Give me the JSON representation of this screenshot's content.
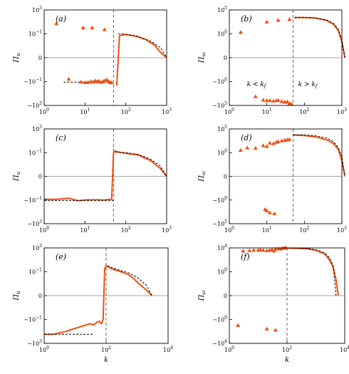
{
  "chart_data": [
    {
      "type": "line",
      "panel_label": "(a)",
      "ylabel": "Π_u",
      "xlabel": "",
      "xscale": "log",
      "xlim": [
        1,
        1000
      ],
      "yscale": "symlog",
      "xticks": [
        "10^0",
        "10^1",
        "10^2",
        "10^3"
      ],
      "yticks": [
        "−10^3",
        "−10^−1",
        "0",
        "10^−1",
        "10^3"
      ],
      "kf": 50,
      "series": [
        {
          "style": "solid-orange",
          "x": [
            60,
            70,
            80,
            100,
            150,
            200,
            300,
            500,
            700,
            1000
          ],
          "y": [
            -0.5,
            0.06,
            0.07,
            0.08,
            0.06,
            0.04,
            0.02,
            0.004,
            0.0005,
            0
          ]
        },
        {
          "style": "dashed-black",
          "x": [
            3,
            45
          ],
          "y": [
            -0.12,
            -0.12
          ]
        },
        {
          "style": "dashed-black",
          "x": [
            65,
            100,
            200,
            400,
            700,
            1000
          ],
          "y": [
            0.1,
            0.09,
            0.05,
            0.012,
            0.002,
            0
          ]
        },
        {
          "style": "triangles",
          "x": [
            2,
            4,
            8,
            10,
            12,
            14,
            16,
            18,
            20,
            22,
            25,
            28,
            30,
            34,
            38,
            42,
            45,
            9,
            15,
            30
          ],
          "y": [
            5,
            -0.05,
            -0.12,
            -0.15,
            -0.14,
            -0.1,
            -0.12,
            -0.08,
            -0.11,
            -0.09,
            -0.13,
            -0.1,
            -0.08,
            -0.06,
            -0.1,
            -0.15,
            -0.16,
            1,
            1,
            0.5
          ]
        }
      ]
    },
    {
      "type": "line",
      "panel_label": "(b)",
      "ylabel": "Π_ω",
      "xlabel": "",
      "xscale": "log",
      "xlim": [
        1,
        1000
      ],
      "yscale": "symlog",
      "xticks": [
        "10^0",
        "10^1",
        "10^2",
        "10^3"
      ],
      "yticks": [
        "−10^5",
        "−10^0",
        "0",
        "10^0",
        "10^5"
      ],
      "kf": 50,
      "annotations": [
        "k < k_f",
        "k > k_f"
      ],
      "series": [
        {
          "style": "solid-orange",
          "x": [
            55,
            60,
            100,
            200,
            400,
            600,
            800,
            1000,
            1200
          ],
          "y": [
            2000,
            2500,
            2600,
            2000,
            600,
            100,
            5,
            0.1,
            0
          ]
        },
        {
          "style": "dashed-black",
          "x": [
            55,
            100,
            200,
            400,
            600,
            800,
            1000,
            1200
          ],
          "y": [
            3000,
            2800,
            2200,
            800,
            150,
            10,
            0.2,
            0
          ]
        },
        {
          "style": "triangles",
          "x": [
            2,
            5,
            8,
            10,
            12,
            15,
            18,
            20,
            25,
            30,
            35,
            40,
            45,
            10,
            20,
            40
          ],
          "y": [
            2,
            -1500,
            -8000,
            -9000,
            -10000,
            -12000,
            -10000,
            -9000,
            -15000,
            -20000,
            -18000,
            -40000,
            -50000,
            300,
            700,
            1000
          ]
        }
      ]
    },
    {
      "type": "line",
      "panel_label": "(c)",
      "ylabel": "Π_u",
      "xlabel": "",
      "xscale": "log",
      "xlim": [
        1,
        1000
      ],
      "yscale": "symlog",
      "xticks": [
        "10^0",
        "10^1",
        "10^2",
        "10^3"
      ],
      "yticks": [
        "−10^3",
        "−10^−1",
        "0",
        "10^−1",
        "10^3"
      ],
      "kf": 50,
      "series": [
        {
          "style": "solid-orange",
          "x": [
            1,
            2,
            3,
            4,
            5,
            6,
            7,
            8,
            9,
            10,
            12,
            14,
            16,
            18,
            20,
            25,
            30,
            35,
            40,
            45,
            50,
            55,
            60,
            70,
            80,
            100,
            200,
            400,
            700,
            1000
          ],
          "y": [
            -0.08,
            -0.08,
            -0.07,
            -0.06,
            -0.08,
            -0.11,
            -0.13,
            -0.12,
            -0.11,
            -0.1,
            -0.09,
            -0.1,
            -0.09,
            -0.1,
            -0.09,
            -0.1,
            -0.1,
            -0.09,
            -0.08,
            -0.08,
            0.1,
            0.2,
            0.15,
            0.12,
            0.1,
            0.08,
            0.05,
            0.01,
            0.001,
            0
          ]
        },
        {
          "style": "dashed-black",
          "x": [
            1,
            50
          ],
          "y": [
            -0.12,
            -0.12
          ]
        },
        {
          "style": "dashed-black",
          "x": [
            55,
            100,
            200,
            400,
            700,
            1000
          ],
          "y": [
            0.12,
            0.1,
            0.06,
            0.015,
            0.002,
            0
          ]
        }
      ]
    },
    {
      "type": "line",
      "panel_label": "(d)",
      "ylabel": "Π_ω",
      "xlabel": "",
      "xscale": "log",
      "xlim": [
        1,
        1000
      ],
      "yscale": "symlog",
      "xticks": [
        "10^0",
        "10^1",
        "10^2",
        "10^3"
      ],
      "yticks": [
        "−10^5",
        "−10^0",
        "0",
        "10^0",
        "10^5"
      ],
      "kf": 50,
      "series": [
        {
          "style": "solid-orange",
          "x": [
            50,
            60,
            100,
            200,
            400,
            600,
            800,
            1000,
            1200
          ],
          "y": [
            5000,
            5000,
            4000,
            2000,
            500,
            80,
            5,
            0.1,
            0
          ]
        },
        {
          "style": "dashed-black",
          "x": [
            50,
            100,
            200,
            400,
            600,
            800,
            1000,
            1200
          ],
          "y": [
            6000,
            5500,
            3500,
            1200,
            200,
            12,
            0.3,
            0
          ]
        },
        {
          "style": "triangles",
          "x": [
            2,
            3,
            5,
            8,
            10,
            12,
            15,
            18,
            20,
            25,
            30,
            35,
            40,
            9,
            10,
            12,
            16
          ],
          "y": [
            3,
            10,
            8,
            30,
            20,
            100,
            80,
            150,
            200,
            300,
            400,
            500,
            600,
            -100,
            -200,
            -500,
            -800
          ]
        }
      ]
    },
    {
      "type": "line",
      "panel_label": "(e)",
      "ylabel": "Π_u",
      "xlabel": "k",
      "xscale": "log",
      "xlim": [
        1,
        10000
      ],
      "yscale": "symlog",
      "xticks": [
        "10^0",
        "10^2",
        "10^4"
      ],
      "yticks": [
        "−10^3",
        "−10^−1",
        "0",
        "10^−1",
        "10^3"
      ],
      "kf": 100,
      "series": [
        {
          "style": "solid-orange",
          "x": [
            1,
            2,
            5,
            10,
            20,
            30,
            40,
            50,
            60,
            70,
            80,
            90,
            100,
            110,
            150,
            200,
            300,
            500,
            700,
            1000,
            2000,
            3000
          ],
          "y": [
            -30,
            -30,
            -10,
            -3,
            -1,
            -0.5,
            -0.8,
            -0.3,
            -0.2,
            -0.5,
            -0.1,
            0.3,
            1,
            0.8,
            0.3,
            0.2,
            0.1,
            0.05,
            0.02,
            0.005,
            0.0005,
            0
          ]
        },
        {
          "style": "dashed-black",
          "x": [
            1,
            40
          ],
          "y": [
            -30,
            -30
          ]
        },
        {
          "style": "dashed-black",
          "x": [
            110,
            200,
            500,
            1000,
            2000,
            3000
          ],
          "y": [
            1,
            0.3,
            0.08,
            0.02,
            0.002,
            0
          ]
        }
      ]
    },
    {
      "type": "line",
      "panel_label": "(f)",
      "ylabel": "Π_ω",
      "xlabel": "k",
      "xscale": "log",
      "xlim": [
        1,
        10000
      ],
      "yscale": "symlog",
      "xticks": [
        "10^0",
        "10^2",
        "10^4"
      ],
      "yticks": [
        "−10^4",
        "−10^0",
        "0",
        "10^0",
        "10^4"
      ],
      "kf": 100,
      "series": [
        {
          "style": "solid-orange",
          "x": [
            100,
            200,
            500,
            1000,
            2000,
            3000,
            4000,
            5000,
            6000
          ],
          "y": [
            9000,
            8500,
            7000,
            4000,
            1000,
            100,
            5,
            0.1,
            0
          ]
        },
        {
          "style": "dashed-black",
          "x": [
            100,
            200,
            500,
            1000,
            2000,
            3000,
            4000,
            5000
          ],
          "y": [
            10000,
            9500,
            8000,
            5000,
            1500,
            200,
            10,
            0
          ]
        },
        {
          "style": "triangles",
          "x": [
            2,
            3,
            5,
            7,
            10,
            12,
            15,
            20,
            25,
            30,
            35,
            40,
            50,
            60,
            70,
            80,
            90,
            20,
            40
          ],
          "y": [
            -10,
            3000,
            3500,
            4000,
            4000,
            4500,
            4000,
            3500,
            4000,
            5000,
            3000,
            6000,
            7000,
            6500,
            8000,
            9000,
            10000,
            -40,
            -60
          ]
        }
      ]
    }
  ]
}
